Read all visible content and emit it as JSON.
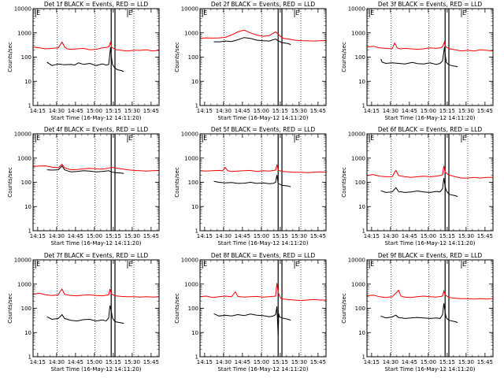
{
  "figure": {
    "xlabel": "Start Time (16-May-12 14:11:20)",
    "ylabel": "Counts/sec",
    "x_ticks": [
      "14:15",
      "14:30",
      "14:45",
      "15:00",
      "15:15",
      "15:30",
      "15:45"
    ],
    "y_ticks": [
      "1",
      "10",
      "100",
      "1000",
      "10000"
    ],
    "flag_letter": "E",
    "colors": {
      "events": "#000000",
      "lld": "#ff0000",
      "axes": "#000000",
      "dotted_lines": "#000000"
    }
  },
  "chart_data": [
    {
      "type": "line",
      "title": "Det 1f BLACK = Events, RED = LLD",
      "x_unit": "minutes after 14:11:20",
      "xlim": [
        0,
        100
      ],
      "ylim": [
        1,
        10000
      ],
      "log_y": true,
      "dotted_x": [
        19,
        49,
        80
      ],
      "event_window": [
        62,
        65
      ],
      "flag_x": [
        2,
        75
      ],
      "series": [
        {
          "role": "events",
          "x": [
            11,
            15,
            20,
            25,
            30,
            33,
            36,
            40,
            45,
            50,
            55,
            58,
            60,
            61.5,
            62,
            63,
            65,
            67,
            70,
            72
          ],
          "values": [
            62,
            45,
            52,
            48,
            50,
            47,
            58,
            50,
            55,
            45,
            52,
            47,
            50,
            250,
            120,
            50,
            35,
            30,
            28,
            25
          ]
        },
        {
          "role": "lld",
          "x": [
            0,
            5,
            10,
            15,
            20,
            23,
            25,
            27,
            30,
            35,
            40,
            45,
            50,
            55,
            58,
            60,
            61.5,
            62,
            64,
            66,
            70,
            75,
            80,
            85,
            90,
            95,
            100
          ],
          "values": [
            260,
            240,
            220,
            230,
            240,
            420,
            260,
            220,
            210,
            220,
            230,
            200,
            210,
            240,
            250,
            260,
            420,
            260,
            230,
            200,
            190,
            180,
            190,
            190,
            200,
            180,
            190
          ]
        }
      ]
    },
    {
      "type": "line",
      "title": "Det 2f BLACK = Events, RED = LLD",
      "x_unit": "minutes after 14:11:20",
      "xlim": [
        0,
        100
      ],
      "ylim": [
        1,
        10000
      ],
      "log_y": true,
      "dotted_x": [
        19,
        49,
        80
      ],
      "event_window": [
        62,
        65
      ],
      "flag_x": [
        2,
        75
      ],
      "series": [
        {
          "role": "events",
          "x": [
            11,
            15,
            20,
            25,
            30,
            35,
            40,
            45,
            50,
            55,
            60,
            62,
            65,
            70,
            72
          ],
          "values": [
            430,
            420,
            460,
            440,
            520,
            640,
            590,
            500,
            470,
            460,
            560,
            470,
            400,
            360,
            330
          ]
        },
        {
          "role": "lld",
          "x": [
            0,
            5,
            10,
            15,
            20,
            25,
            30,
            35,
            40,
            45,
            50,
            55,
            60,
            62,
            64,
            66,
            70,
            75,
            80,
            85,
            90,
            95,
            100
          ],
          "values": [
            600,
            620,
            610,
            620,
            650,
            820,
            1100,
            1300,
            1000,
            820,
            720,
            780,
            1100,
            900,
            700,
            600,
            560,
            500,
            480,
            470,
            460,
            470,
            480
          ]
        }
      ]
    },
    {
      "type": "line",
      "title": "Det 3f BLACK = Events, RED = LLD",
      "x_unit": "minutes after 14:11:20",
      "xlim": [
        0,
        100
      ],
      "ylim": [
        1,
        10000
      ],
      "log_y": true,
      "dotted_x": [
        19,
        49,
        80
      ],
      "event_window": [
        62,
        65
      ],
      "flag_x": [
        2,
        75
      ],
      "series": [
        {
          "role": "events",
          "x": [
            11,
            12,
            15,
            20,
            25,
            30,
            33,
            36,
            40,
            45,
            50,
            55,
            58,
            60,
            61.5,
            62,
            63,
            65,
            67,
            70,
            72
          ],
          "values": [
            85,
            62,
            55,
            58,
            55,
            52,
            56,
            60,
            54,
            52,
            58,
            50,
            55,
            70,
            260,
            140,
            60,
            48,
            45,
            42,
            40
          ]
        },
        {
          "role": "lld",
          "x": [
            0,
            5,
            10,
            15,
            20,
            22,
            24,
            26,
            30,
            35,
            40,
            45,
            50,
            55,
            58,
            60,
            61.5,
            62,
            64,
            66,
            70,
            75,
            80,
            85,
            90,
            95,
            100
          ],
          "values": [
            260,
            280,
            240,
            230,
            220,
            380,
            240,
            220,
            230,
            220,
            210,
            220,
            240,
            230,
            240,
            270,
            420,
            280,
            240,
            220,
            200,
            180,
            190,
            180,
            200,
            190,
            180
          ]
        }
      ]
    },
    {
      "type": "line",
      "title": "Det 4f BLACK = Events, RED = LLD",
      "x_unit": "minutes after 14:11:20",
      "xlim": [
        0,
        100
      ],
      "ylim": [
        1,
        10000
      ],
      "log_y": true,
      "dotted_x": [
        19,
        49,
        80
      ],
      "event_window": [
        62,
        65
      ],
      "flag_x": [
        2,
        75
      ],
      "series": [
        {
          "role": "events",
          "x": [
            11,
            15,
            20,
            23,
            25,
            28,
            30,
            35,
            40,
            45,
            50,
            55,
            60,
            62,
            65,
            70,
            72
          ],
          "values": [
            330,
            320,
            330,
            480,
            330,
            290,
            270,
            280,
            300,
            290,
            270,
            280,
            300,
            270,
            250,
            240,
            230
          ]
        },
        {
          "role": "lld",
          "x": [
            0,
            5,
            10,
            15,
            20,
            23,
            25,
            30,
            35,
            40,
            45,
            50,
            55,
            60,
            62,
            65,
            70,
            75,
            80,
            85,
            90,
            95,
            100
          ],
          "values": [
            450,
            470,
            480,
            420,
            400,
            560,
            400,
            330,
            340,
            360,
            380,
            360,
            350,
            380,
            420,
            390,
            360,
            330,
            310,
            300,
            290,
            300,
            310
          ]
        }
      ]
    },
    {
      "type": "line",
      "title": "Det 5f BLACK = Events, RED = LLD",
      "x_unit": "minutes after 14:11:20",
      "xlim": [
        0,
        100
      ],
      "ylim": [
        1,
        10000
      ],
      "log_y": true,
      "dotted_x": [
        19,
        49,
        80
      ],
      "event_window": [
        62,
        65
      ],
      "flag_x": [
        2,
        75
      ],
      "series": [
        {
          "role": "events",
          "x": [
            11,
            15,
            20,
            25,
            30,
            35,
            40,
            45,
            50,
            55,
            58,
            60,
            61,
            62,
            65,
            70,
            72
          ],
          "values": [
            110,
            100,
            95,
            98,
            90,
            92,
            100,
            90,
            95,
            88,
            90,
            100,
            200,
            90,
            75,
            70,
            65
          ]
        },
        {
          "role": "lld",
          "x": [
            0,
            5,
            10,
            15,
            18,
            20,
            22,
            25,
            30,
            35,
            40,
            45,
            50,
            55,
            60,
            61,
            62,
            65,
            70,
            75,
            80,
            85,
            90,
            95,
            100
          ],
          "values": [
            300,
            290,
            300,
            310,
            300,
            410,
            300,
            280,
            290,
            300,
            310,
            280,
            300,
            290,
            320,
            540,
            320,
            280,
            270,
            260,
            260,
            250,
            260,
            270,
            260
          ]
        }
      ]
    },
    {
      "type": "line",
      "title": "Det 6f BLACK = Events, RED = LLD",
      "x_unit": "minutes after 14:11:20",
      "xlim": [
        0,
        100
      ],
      "ylim": [
        1,
        10000
      ],
      "log_y": true,
      "dotted_x": [
        19,
        49,
        80
      ],
      "event_window": [
        62,
        65
      ],
      "flag_x": [
        2,
        75
      ],
      "series": [
        {
          "role": "events",
          "x": [
            11,
            15,
            20,
            23,
            25,
            30,
            35,
            40,
            45,
            50,
            55,
            58,
            60,
            61,
            62,
            63,
            65,
            70,
            72
          ],
          "values": [
            45,
            38,
            40,
            60,
            42,
            38,
            40,
            44,
            40,
            38,
            42,
            40,
            55,
            150,
            70,
            45,
            32,
            28,
            26
          ]
        },
        {
          "role": "lld",
          "x": [
            0,
            5,
            10,
            15,
            20,
            22,
            23,
            25,
            30,
            35,
            40,
            45,
            50,
            55,
            60,
            61,
            62,
            65,
            70,
            75,
            80,
            85,
            90,
            95,
            100
          ],
          "values": [
            190,
            210,
            180,
            170,
            170,
            260,
            310,
            190,
            170,
            160,
            170,
            180,
            170,
            180,
            200,
            480,
            260,
            200,
            170,
            150,
            150,
            160,
            150,
            160,
            160
          ]
        }
      ]
    },
    {
      "type": "line",
      "title": "Det 7f BLACK = Events, RED = LLD",
      "x_unit": "minutes after 14:11:20",
      "xlim": [
        0,
        100
      ],
      "ylim": [
        1,
        10000
      ],
      "log_y": true,
      "dotted_x": [
        19,
        49,
        80
      ],
      "event_window": [
        62,
        65
      ],
      "flag_x": [
        2,
        75
      ],
      "series": [
        {
          "role": "events",
          "x": [
            11,
            15,
            20,
            23,
            25,
            30,
            35,
            40,
            45,
            50,
            55,
            58,
            60,
            61,
            62,
            63,
            65,
            70,
            72
          ],
          "values": [
            45,
            35,
            38,
            55,
            38,
            32,
            30,
            34,
            35,
            30,
            33,
            30,
            40,
            130,
            80,
            40,
            28,
            25,
            24
          ]
        },
        {
          "role": "lld",
          "x": [
            0,
            5,
            10,
            15,
            20,
            22,
            23,
            25,
            30,
            35,
            40,
            45,
            50,
            55,
            60,
            61,
            62,
            65,
            70,
            75,
            80,
            85,
            90,
            95,
            100
          ],
          "values": [
            380,
            420,
            360,
            340,
            360,
            540,
            620,
            380,
            340,
            330,
            350,
            360,
            340,
            330,
            360,
            620,
            400,
            330,
            310,
            300,
            300,
            290,
            300,
            290,
            300
          ]
        }
      ]
    },
    {
      "type": "line",
      "title": "Det 8f BLACK = Events, RED = LLD",
      "x_unit": "minutes after 14:11:20",
      "xlim": [
        0,
        100
      ],
      "ylim": [
        1,
        10000
      ],
      "log_y": true,
      "dotted_x": [
        19,
        49,
        80
      ],
      "event_window": [
        62,
        65
      ],
      "flag_x": [
        2,
        75
      ],
      "series": [
        {
          "role": "events",
          "x": [
            11,
            15,
            20,
            25,
            30,
            35,
            40,
            45,
            50,
            55,
            58,
            60,
            61,
            62,
            62.5,
            63,
            65,
            70,
            72
          ],
          "values": [
            60,
            48,
            52,
            48,
            55,
            50,
            58,
            52,
            50,
            45,
            48,
            55,
            120,
            8,
            60,
            45,
            40,
            35,
            32
          ]
        },
        {
          "role": "lld",
          "x": [
            0,
            5,
            10,
            15,
            20,
            25,
            28,
            30,
            35,
            40,
            45,
            50,
            55,
            60,
            61,
            62,
            64,
            66,
            70,
            75,
            80,
            85,
            90,
            95,
            100
          ],
          "values": [
            300,
            320,
            280,
            300,
            320,
            300,
            480,
            310,
            290,
            300,
            310,
            290,
            300,
            320,
            1100,
            450,
            260,
            240,
            230,
            220,
            210,
            220,
            230,
            220,
            220
          ]
        }
      ]
    },
    {
      "type": "line",
      "title": "Det 9f BLACK = Events, RED = LLD",
      "x_unit": "minutes after 14:11:20",
      "xlim": [
        0,
        100
      ],
      "ylim": [
        1,
        10000
      ],
      "log_y": true,
      "dotted_x": [
        19,
        49,
        80
      ],
      "event_window": [
        62,
        65
      ],
      "flag_x": [
        2,
        75
      ],
      "series": [
        {
          "role": "events",
          "x": [
            11,
            15,
            20,
            23,
            25,
            30,
            35,
            40,
            45,
            50,
            55,
            58,
            60,
            61,
            62,
            63,
            65,
            70,
            72
          ],
          "values": [
            48,
            40,
            44,
            52,
            42,
            38,
            40,
            42,
            40,
            38,
            40,
            38,
            55,
            160,
            70,
            40,
            32,
            28,
            26
          ]
        },
        {
          "role": "lld",
          "x": [
            0,
            5,
            10,
            15,
            20,
            24,
            25,
            27,
            30,
            35,
            40,
            45,
            50,
            55,
            60,
            61,
            62,
            65,
            70,
            75,
            80,
            85,
            90,
            95,
            100
          ],
          "values": [
            330,
            350,
            300,
            280,
            300,
            480,
            560,
            320,
            290,
            280,
            300,
            320,
            300,
            290,
            320,
            520,
            360,
            280,
            260,
            250,
            250,
            240,
            250,
            240,
            250
          ]
        }
      ]
    }
  ]
}
